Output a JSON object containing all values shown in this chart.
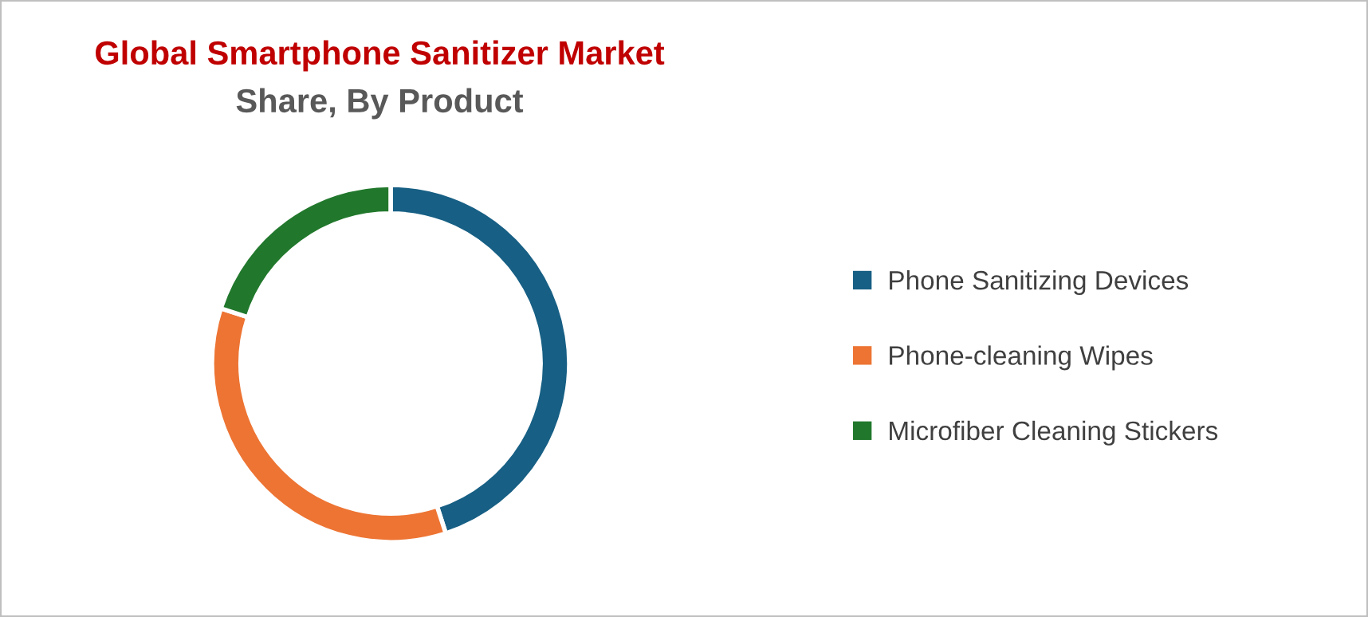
{
  "chart_data": {
    "type": "donut",
    "title": "Global Smartphone Sanitizer Market",
    "subtitle": "Share, By Product",
    "categories": [
      "Phone Sanitizing Devices",
      "Phone-cleaning Wipes",
      "Microfiber Cleaning Stickers"
    ],
    "values": [
      45,
      35,
      20
    ],
    "colors": [
      "#175f84",
      "#ed7433",
      "#21782c"
    ],
    "legend": "right"
  }
}
